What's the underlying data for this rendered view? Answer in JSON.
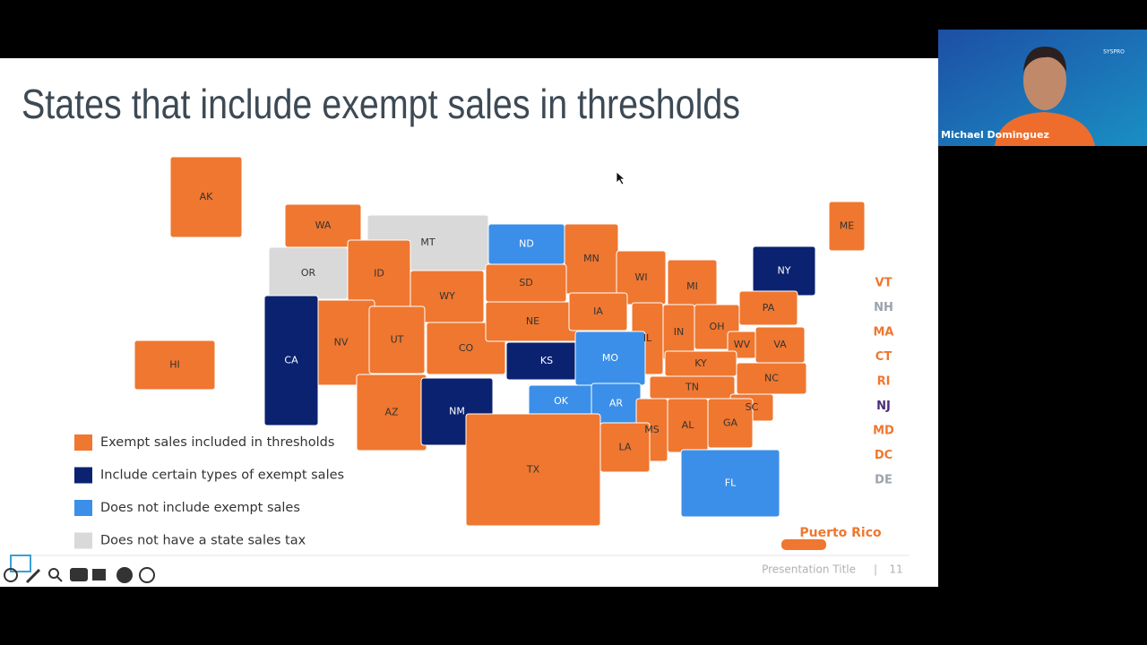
{
  "slide": {
    "title": "States that include exempt sales in thresholds",
    "legend": [
      {
        "label": "Exempt sales included in thresholds",
        "color": "#ef7730"
      },
      {
        "label": "Include certain types of exempt sales",
        "color": "#0b2270"
      },
      {
        "label": "Does not include exempt sales",
        "color": "#3b8fe8"
      },
      {
        "label": "Does not have a state sales tax",
        "color": "#d9d9d9"
      }
    ],
    "states": [
      {
        "label": "AK",
        "category": 0
      },
      {
        "label": "WA",
        "category": 0
      },
      {
        "label": "OR",
        "category": 3
      },
      {
        "label": "MT",
        "category": 3
      },
      {
        "label": "ND",
        "category": 2
      },
      {
        "label": "MN",
        "category": 0
      },
      {
        "label": "ID",
        "category": 0
      },
      {
        "label": "WY",
        "category": 0
      },
      {
        "label": "SD",
        "category": 0
      },
      {
        "label": "WI",
        "category": 0
      },
      {
        "label": "MI",
        "category": 0
      },
      {
        "label": "NY",
        "category": 1
      },
      {
        "label": "ME",
        "category": 0
      },
      {
        "label": "NV",
        "category": 0
      },
      {
        "label": "CA",
        "category": 1
      },
      {
        "label": "UT",
        "category": 0
      },
      {
        "label": "CO",
        "category": 0
      },
      {
        "label": "NE",
        "category": 0
      },
      {
        "label": "IA",
        "category": 0
      },
      {
        "label": "IL",
        "category": 0
      },
      {
        "label": "IN",
        "category": 0
      },
      {
        "label": "OH",
        "category": 0
      },
      {
        "label": "PA",
        "category": 0
      },
      {
        "label": "KS",
        "category": 1
      },
      {
        "label": "MO",
        "category": 2
      },
      {
        "label": "WV",
        "category": 0
      },
      {
        "label": "VA",
        "category": 0
      },
      {
        "label": "KY",
        "category": 0
      },
      {
        "label": "AZ",
        "category": 0
      },
      {
        "label": "NM",
        "category": 1
      },
      {
        "label": "OK",
        "category": 2
      },
      {
        "label": "AR",
        "category": 2
      },
      {
        "label": "TN",
        "category": 0
      },
      {
        "label": "NC",
        "category": 0
      },
      {
        "label": "SC",
        "category": 0
      },
      {
        "label": "GA",
        "category": 0
      },
      {
        "label": "AL",
        "category": 0
      },
      {
        "label": "MS",
        "category": 0
      },
      {
        "label": "LA",
        "category": 0
      },
      {
        "label": "TX",
        "category": 0
      },
      {
        "label": "FL",
        "category": 2
      },
      {
        "label": "HI",
        "category": 0
      }
    ],
    "side_labels": [
      {
        "label": "VT",
        "category": 0
      },
      {
        "label": "NH",
        "category": 3
      },
      {
        "label": "MA",
        "category": 0
      },
      {
        "label": "CT",
        "category": 0
      },
      {
        "label": "RI",
        "category": 0
      },
      {
        "label": "NJ",
        "category": 1
      },
      {
        "label": "MD",
        "category": 0
      },
      {
        "label": "DC",
        "category": 0
      },
      {
        "label": "DE",
        "category": 3
      }
    ],
    "territory": {
      "label": "Puerto Rico",
      "category": 0
    },
    "footer": {
      "presentation_title": "Presentation Title",
      "separator": "|",
      "page": 11
    }
  },
  "webcam": {
    "name": "Michael Dominguez",
    "logo": "SYSPRO"
  }
}
